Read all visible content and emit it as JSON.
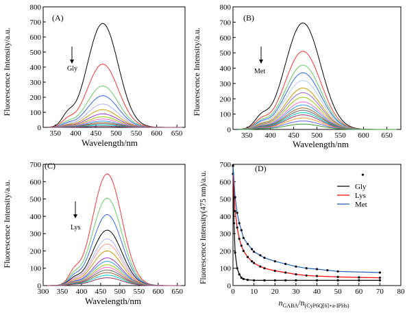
{
  "chart_data": [
    {
      "panel_label": "(A)",
      "type": "line",
      "xlabel": "Wavelength/nm",
      "ylabel": "Fluorescence Intensity/a.u.",
      "xlim": [
        320,
        670
      ],
      "ylim": [
        0,
        800
      ],
      "xticks": [
        350,
        400,
        450,
        500,
        550,
        600,
        650
      ],
      "yticks": [
        0,
        100,
        200,
        300,
        400,
        500,
        600,
        700,
        800
      ],
      "arrow_label": "Gly",
      "peak_wavelength": 467,
      "peak_values": [
        690,
        420,
        275,
        210,
        155,
        118,
        90,
        70,
        55,
        42,
        32,
        24,
        15,
        8
      ],
      "colors": [
        "#000000",
        "#ff3333",
        "#66cc66",
        "#3366ff",
        "#b0b0ff",
        "#cc9900",
        "#9933cc",
        "#99cc00",
        "#ff66cc",
        "#3399ff",
        "#996633",
        "#666666",
        "#00cccc",
        "#993366"
      ]
    },
    {
      "panel_label": "(B)",
      "type": "line",
      "xlabel": "Wavelength/nm",
      "ylabel": "Fluorescence Intensity/a.u.",
      "xlim": [
        320,
        680
      ],
      "ylim": [
        0,
        800
      ],
      "xticks": [
        350,
        400,
        450,
        500,
        550,
        600,
        650
      ],
      "yticks": [
        0,
        100,
        200,
        300,
        400,
        500,
        600,
        700,
        800
      ],
      "arrow_label": "Met",
      "peak_wavelength": 470,
      "peak_values": [
        695,
        510,
        420,
        370,
        320,
        270,
        240,
        210,
        180,
        160,
        140,
        125,
        110,
        95,
        75,
        55,
        35
      ],
      "colors": [
        "#000000",
        "#ff3333",
        "#66cc66",
        "#3366ff",
        "#b0d0ff",
        "#cc9900",
        "#9966cc",
        "#99cc00",
        "#ff66cc",
        "#3399ff",
        "#996633",
        "#666666",
        "#00cccc",
        "#993366",
        "#ff9933",
        "#6666ff",
        "#339933"
      ]
    },
    {
      "panel_label": "(C)",
      "type": "line",
      "xlabel": "Wavelength/nm",
      "ylabel": "Fluorescence Intensity/a.u.",
      "xlim": [
        300,
        670
      ],
      "ylim": [
        0,
        700
      ],
      "xticks": [
        300,
        350,
        400,
        450,
        500,
        550,
        600,
        650
      ],
      "yticks": [
        0,
        100,
        200,
        300,
        400,
        500,
        600,
        700
      ],
      "arrow_label": "Lys",
      "peak_wavelength": 467,
      "peak_values": [
        645,
        505,
        410,
        320,
        270,
        240,
        200,
        160,
        140,
        120,
        105,
        90,
        75,
        60,
        45
      ],
      "colors": [
        "#ff3333",
        "#66cc66",
        "#3366ff",
        "#000000",
        "#b0b0ff",
        "#ff9999",
        "#cc9900",
        "#9933cc",
        "#3399ff",
        "#99cc00",
        "#ff66cc",
        "#666666",
        "#996633",
        "#00cccc",
        "#993366"
      ]
    },
    {
      "panel_label": "(D)",
      "type": "scatter",
      "xlabel_main": "n",
      "xlabel_sub1": "GABA",
      "xlabel_slash": "/n",
      "xlabel_sub2": "(CyP6Q[6]+a-IPHs)",
      "ylabel": "Fluorescence Intensity(475 nm)/a.u.",
      "xlim": [
        0,
        80
      ],
      "ylim": [
        0,
        700
      ],
      "xticks": [
        0,
        10,
        20,
        30,
        40,
        50,
        60,
        70,
        80
      ],
      "yticks": [
        0,
        100,
        200,
        300,
        400,
        500,
        600,
        700
      ],
      "marker_legend": "•",
      "series": [
        {
          "name": "Gly",
          "color": "#000000",
          "x": [
            0,
            0.5,
            1,
            2,
            3,
            4,
            5,
            7,
            10,
            15,
            20,
            25,
            30,
            40,
            50,
            60,
            70
          ],
          "y": [
            690,
            360,
            190,
            100,
            65,
            45,
            38,
            33,
            30,
            30,
            30,
            30,
            30,
            30,
            30,
            30,
            30
          ]
        },
        {
          "name": "Lys",
          "color": "#ff0000",
          "x": [
            0,
            1,
            2,
            3,
            4,
            5,
            7,
            9,
            10,
            13,
            15,
            20,
            25,
            30,
            35,
            40,
            50,
            60,
            70
          ],
          "y": [
            645,
            430,
            335,
            270,
            230,
            200,
            165,
            140,
            130,
            110,
            100,
            85,
            75,
            65,
            58,
            55,
            50,
            47,
            45
          ]
        },
        {
          "name": "Met",
          "color": "#1f5fbf",
          "x": [
            0,
            1,
            2,
            3,
            4,
            5,
            7,
            9,
            10,
            13,
            15,
            20,
            25,
            30,
            35,
            40,
            45,
            50,
            70
          ],
          "y": [
            695,
            510,
            420,
            360,
            320,
            275,
            240,
            210,
            195,
            175,
            160,
            140,
            125,
            110,
            100,
            95,
            88,
            82,
            75
          ]
        }
      ]
    }
  ]
}
